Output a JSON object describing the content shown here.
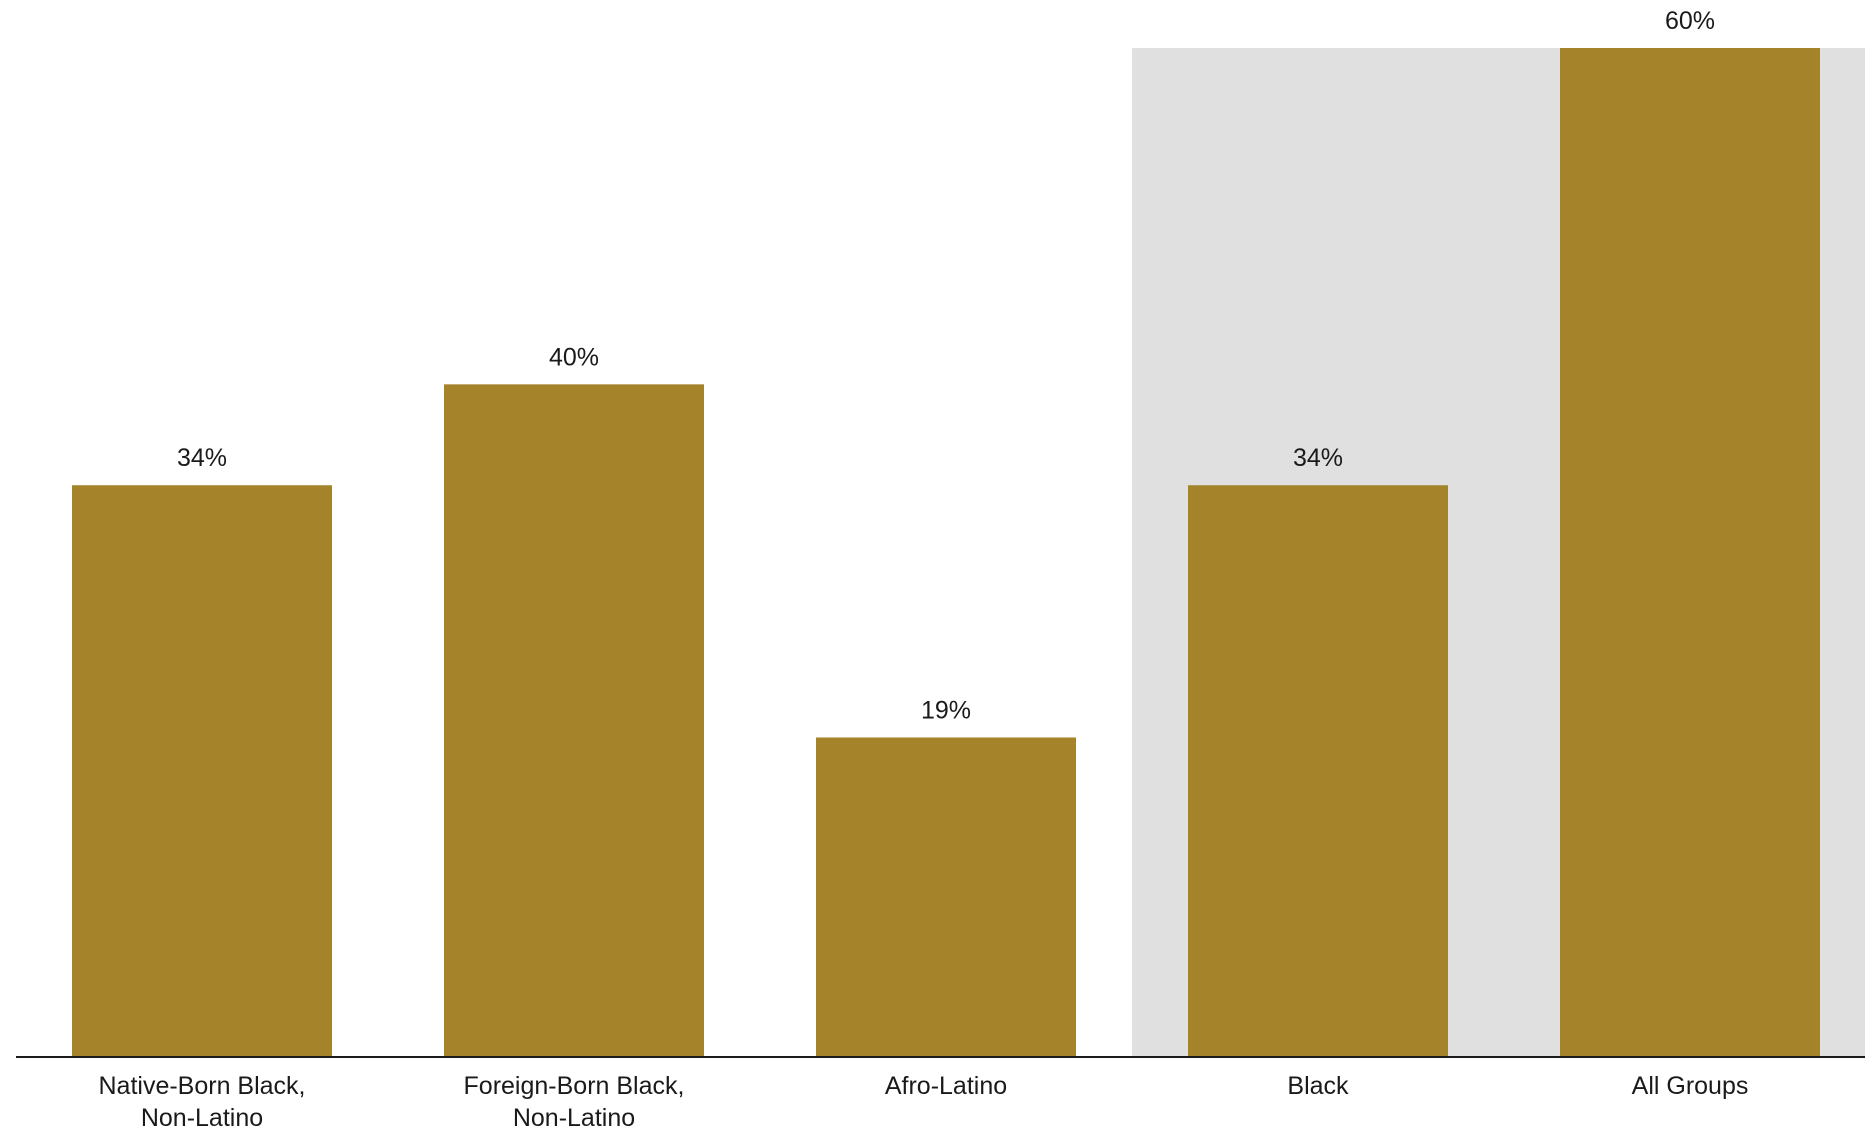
{
  "chart_data": {
    "type": "bar",
    "title": "",
    "xlabel": "",
    "ylabel": "",
    "ylim": [
      0,
      60
    ],
    "grid": false,
    "legend": "none",
    "categories": [
      "Native-Born Black, Non-Latino",
      "Foreign-Born Black, Non-Latino",
      "Afro-Latino",
      "Black",
      "All Groups"
    ],
    "values": [
      34,
      40,
      19,
      34,
      60
    ],
    "value_labels": [
      "34%",
      "40%",
      "19%",
      "34%",
      "60%"
    ],
    "highlighted_categories": [
      "Black",
      "All Groups"
    ],
    "bar_color": "#a5832b",
    "highlight_background_color": "#e0e0e0",
    "axis_color": "#1a1a1a"
  }
}
